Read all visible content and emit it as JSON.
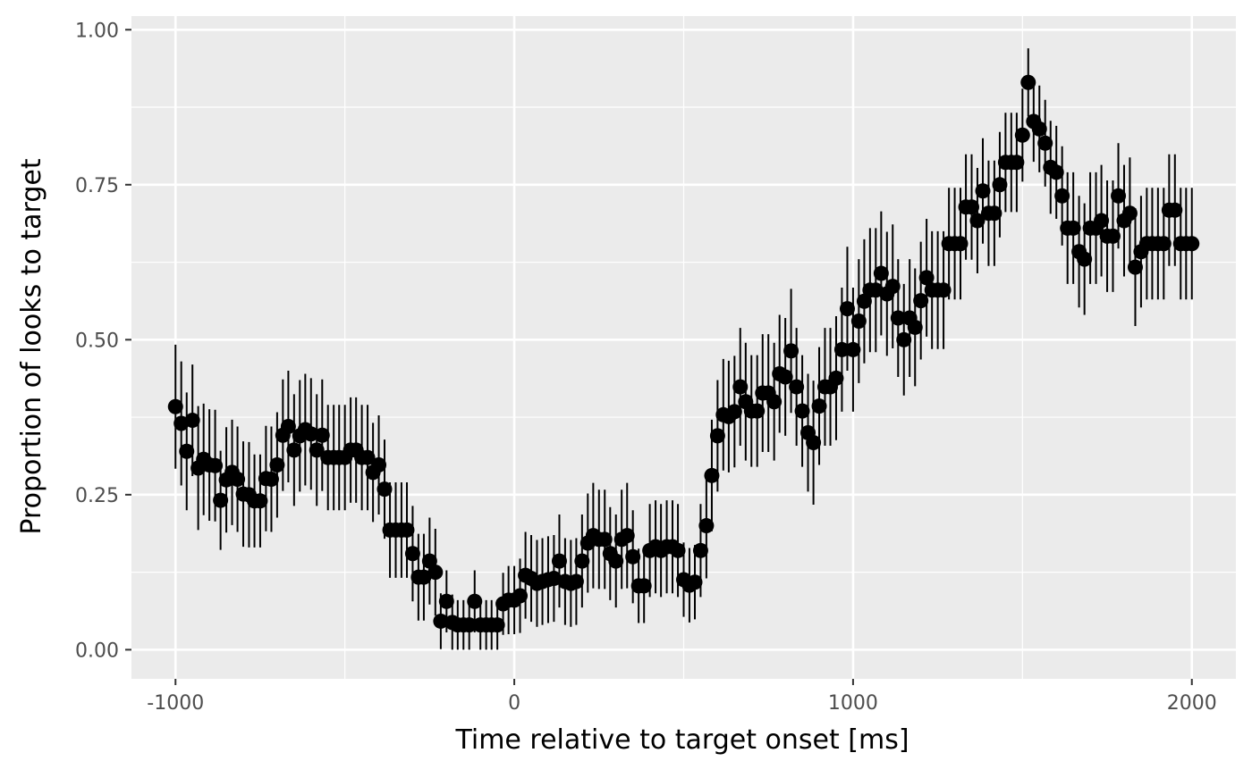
{
  "chart_data": {
    "type": "scatter",
    "title": "",
    "xlabel": "Time relative to target onset [ms]",
    "ylabel": "Proportion of looks to target",
    "xlim": [
      -1130,
      2130
    ],
    "ylim": [
      -0.047,
      1.022
    ],
    "x_ticks": [
      -1000,
      0,
      1000,
      2000
    ],
    "x_tick_labels": [
      "-1000",
      "0",
      "1000",
      "2000"
    ],
    "y_ticks": [
      0,
      0.25,
      0.5,
      0.75,
      1
    ],
    "y_tick_labels": [
      "0.00",
      "0.25",
      "0.50",
      "0.75",
      "1.00"
    ],
    "grid": true,
    "legend": "none",
    "colors": {
      "panel": "#ebebeb",
      "grid": "#ffffff",
      "points": "#000000",
      "tick_text": "#4d4d4d",
      "tick_mark": "#333333"
    },
    "series": [
      {
        "x": [
          -1000,
          -983,
          -967,
          -950,
          -933,
          -917,
          -900,
          -883,
          -867,
          -850,
          -833,
          -817,
          -800,
          -783,
          -767,
          -750,
          -733,
          -717,
          -700,
          -683,
          -667,
          -650,
          -633,
          -617,
          -600,
          -583,
          -567,
          -550,
          -533,
          -517,
          -500,
          -483,
          -467,
          -450,
          -433,
          -417,
          -400,
          -383,
          -367,
          -350,
          -333,
          -317,
          -300,
          -283,
          -267,
          -250,
          -233,
          -217,
          -200,
          -183,
          -167,
          -150,
          -133,
          -117,
          -100,
          -83,
          -67,
          -50,
          -33,
          -17,
          0,
          17,
          33,
          50,
          67,
          83,
          100,
          117,
          133,
          150,
          167,
          183,
          200,
          217,
          233,
          250,
          267,
          283,
          300,
          317,
          333,
          350,
          367,
          383,
          400,
          417,
          433,
          450,
          467,
          483,
          500,
          517,
          533,
          550,
          567,
          583,
          600,
          617,
          633,
          650,
          667,
          683,
          700,
          717,
          733,
          750,
          767,
          783,
          800,
          817,
          833,
          850,
          867,
          883,
          900,
          917,
          933,
          950,
          967,
          983,
          1000,
          1017,
          1033,
          1050,
          1067,
          1083,
          1100,
          1117,
          1133,
          1150,
          1167,
          1183,
          1200,
          1217,
          1233,
          1250,
          1267,
          1283,
          1300,
          1317,
          1333,
          1350,
          1367,
          1383,
          1400,
          1417,
          1433,
          1450,
          1467,
          1483,
          1500,
          1517,
          1533,
          1550,
          1567,
          1583,
          1600,
          1617,
          1633,
          1650,
          1667,
          1683,
          1700,
          1717,
          1733,
          1750,
          1767,
          1783,
          1800,
          1817,
          1833,
          1850,
          1867,
          1883,
          1900,
          1917,
          1933,
          1950,
          1967,
          1983,
          2000
        ],
        "y": [
          0.392,
          0.365,
          0.32,
          0.37,
          0.293,
          0.307,
          0.298,
          0.297,
          0.241,
          0.274,
          0.286,
          0.275,
          0.251,
          0.25,
          0.24,
          0.24,
          0.276,
          0.275,
          0.298,
          0.346,
          0.36,
          0.322,
          0.345,
          0.355,
          0.348,
          0.322,
          0.346,
          0.31,
          0.31,
          0.31,
          0.31,
          0.322,
          0.322,
          0.31,
          0.31,
          0.286,
          0.298,
          0.259,
          0.193,
          0.193,
          0.193,
          0.193,
          0.155,
          0.117,
          0.117,
          0.143,
          0.125,
          0.046,
          0.078,
          0.044,
          0.04,
          0.04,
          0.04,
          0.078,
          0.04,
          0.04,
          0.04,
          0.04,
          0.074,
          0.08,
          0.08,
          0.087,
          0.12,
          0.115,
          0.107,
          0.11,
          0.113,
          0.115,
          0.143,
          0.11,
          0.107,
          0.11,
          0.143,
          0.172,
          0.184,
          0.178,
          0.178,
          0.155,
          0.143,
          0.178,
          0.184,
          0.15,
          0.103,
          0.103,
          0.16,
          0.166,
          0.16,
          0.166,
          0.166,
          0.16,
          0.113,
          0.104,
          0.109,
          0.16,
          0.2,
          0.281,
          0.345,
          0.379,
          0.376,
          0.384,
          0.424,
          0.4,
          0.385,
          0.385,
          0.414,
          0.414,
          0.4,
          0.445,
          0.44,
          0.482,
          0.424,
          0.385,
          0.35,
          0.334,
          0.393,
          0.424,
          0.424,
          0.438,
          0.484,
          0.55,
          0.484,
          0.53,
          0.562,
          0.58,
          0.58,
          0.607,
          0.574,
          0.586,
          0.535,
          0.5,
          0.535,
          0.52,
          0.563,
          0.6,
          0.58,
          0.58,
          0.58,
          0.655,
          0.655,
          0.655,
          0.714,
          0.714,
          0.692,
          0.74,
          0.704,
          0.704,
          0.75,
          0.786,
          0.786,
          0.786,
          0.83,
          0.915,
          0.852,
          0.84,
          0.817,
          0.778,
          0.77,
          0.732,
          0.68,
          0.68,
          0.642,
          0.63,
          0.68,
          0.68,
          0.692,
          0.667,
          0.667,
          0.732,
          0.692,
          0.704,
          0.617,
          0.642,
          0.655,
          0.655,
          0.655,
          0.655,
          0.709,
          0.709,
          0.655,
          0.655,
          0.655
        ],
        "err": [
          0.1,
          0.1,
          0.095,
          0.09,
          0.1,
          0.09,
          0.09,
          0.09,
          0.08,
          0.085,
          0.085,
          0.085,
          0.085,
          0.085,
          0.075,
          0.075,
          0.085,
          0.085,
          0.085,
          0.09,
          0.09,
          0.09,
          0.09,
          0.09,
          0.09,
          0.09,
          0.09,
          0.085,
          0.085,
          0.085,
          0.085,
          0.085,
          0.085,
          0.085,
          0.085,
          0.08,
          0.08,
          0.08,
          0.077,
          0.077,
          0.077,
          0.077,
          0.077,
          0.07,
          0.07,
          0.07,
          0.07,
          0.045,
          0.05,
          0.045,
          0.04,
          0.04,
          0.04,
          0.05,
          0.04,
          0.04,
          0.04,
          0.04,
          0.05,
          0.055,
          0.055,
          0.06,
          0.07,
          0.07,
          0.07,
          0.07,
          0.07,
          0.07,
          0.075,
          0.07,
          0.07,
          0.07,
          0.075,
          0.08,
          0.085,
          0.08,
          0.08,
          0.075,
          0.075,
          0.08,
          0.085,
          0.075,
          0.06,
          0.06,
          0.075,
          0.075,
          0.075,
          0.075,
          0.075,
          0.075,
          0.06,
          0.06,
          0.06,
          0.075,
          0.085,
          0.09,
          0.09,
          0.09,
          0.09,
          0.09,
          0.095,
          0.095,
          0.09,
          0.09,
          0.095,
          0.095,
          0.095,
          0.095,
          0.095,
          0.1,
          0.095,
          0.09,
          0.095,
          0.1,
          0.095,
          0.095,
          0.095,
          0.1,
          0.1,
          0.1,
          0.1,
          0.1,
          0.1,
          0.1,
          0.1,
          0.1,
          0.1,
          0.1,
          0.095,
          0.09,
          0.095,
          0.095,
          0.095,
          0.095,
          0.095,
          0.095,
          0.095,
          0.09,
          0.09,
          0.09,
          0.085,
          0.085,
          0.085,
          0.085,
          0.085,
          0.085,
          0.085,
          0.08,
          0.08,
          0.08,
          0.075,
          0.055,
          0.065,
          0.07,
          0.07,
          0.075,
          0.075,
          0.08,
          0.09,
          0.09,
          0.09,
          0.09,
          0.09,
          0.09,
          0.09,
          0.09,
          0.09,
          0.085,
          0.09,
          0.09,
          0.095,
          0.09,
          0.09,
          0.09,
          0.09,
          0.09,
          0.09,
          0.09,
          0.09,
          0.09,
          0.09
        ]
      }
    ]
  }
}
